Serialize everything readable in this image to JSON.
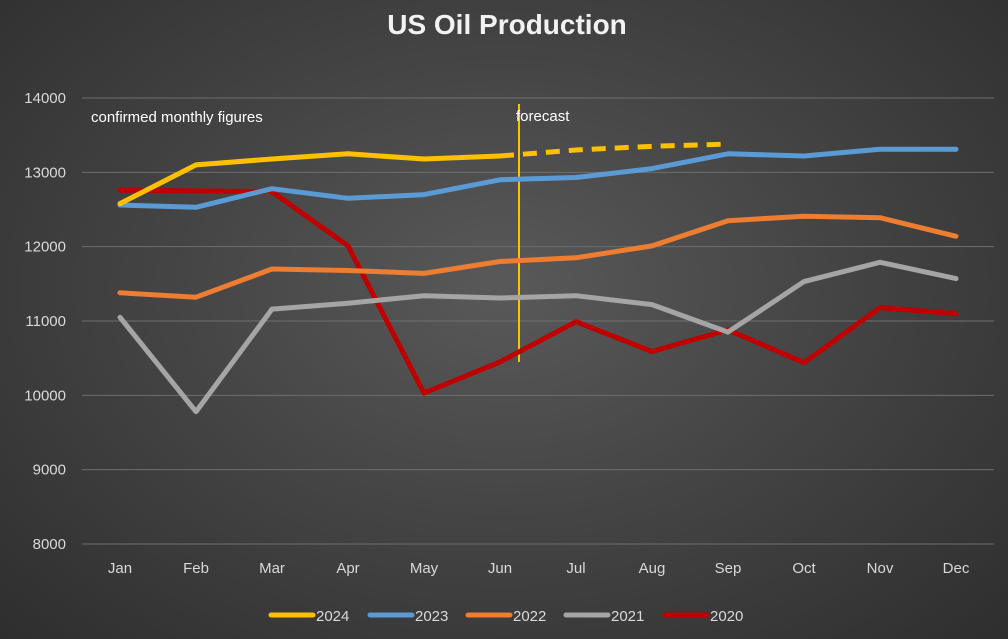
{
  "chart_data": {
    "type": "line",
    "title": "US Oil Production",
    "xlabel": "",
    "ylabel": "",
    "categories": [
      "Jan",
      "Feb",
      "Mar",
      "Apr",
      "May",
      "Jun",
      "Jul",
      "Aug",
      "Sep",
      "Oct",
      "Nov",
      "Dec"
    ],
    "ylim": [
      8000,
      14000
    ],
    "yticks": [
      8000,
      9000,
      10000,
      11000,
      12000,
      13000,
      14000
    ],
    "grid": true,
    "legend_position": "bottom",
    "series": [
      {
        "name": "2024",
        "color": "#ffc000",
        "values": [
          12580,
          13100,
          13180,
          13250,
          13180,
          13220,
          13300,
          13350,
          13380,
          null,
          null,
          null
        ],
        "forecast_from_index": 5
      },
      {
        "name": "2023",
        "color": "#5b9bd5",
        "values": [
          12560,
          12530,
          12780,
          12650,
          12700,
          12900,
          12930,
          13050,
          13250,
          13220,
          13310,
          13310
        ]
      },
      {
        "name": "2022",
        "color": "#ed7d31",
        "values": [
          11380,
          11320,
          11700,
          11680,
          11640,
          11800,
          11850,
          12010,
          12350,
          12410,
          12390,
          12140
        ]
      },
      {
        "name": "2021",
        "color": "#a5a5a5",
        "values": [
          11050,
          9780,
          11160,
          11240,
          11340,
          11310,
          11340,
          11220,
          10850,
          11530,
          11790,
          11570
        ]
      },
      {
        "name": "2020",
        "color": "#c00000",
        "values": [
          12760,
          12750,
          12740,
          12010,
          10030,
          10450,
          10990,
          10590,
          10880,
          10440,
          11180,
          11100
        ]
      }
    ],
    "annotations": {
      "confirmed_label": "confirmed monthly figures",
      "forecast_label": "forecast",
      "divider_after_category": "Jun",
      "divider_color": "#ffc000"
    }
  }
}
